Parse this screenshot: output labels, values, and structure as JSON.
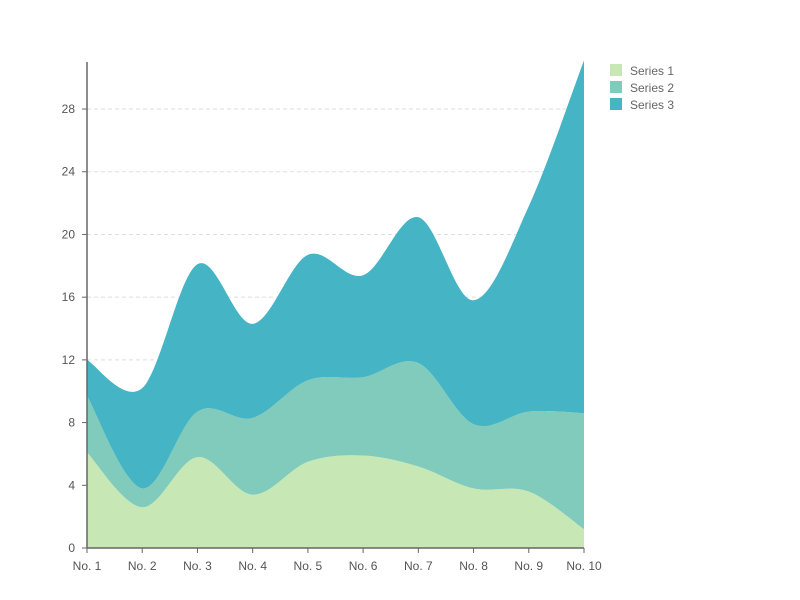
{
  "chart_data": {
    "type": "area",
    "stacked": true,
    "categories": [
      "No. 1",
      "No. 2",
      "No. 3",
      "No. 4",
      "No. 5",
      "No. 6",
      "No. 7",
      "No. 8",
      "No. 9",
      "No. 10"
    ],
    "series": [
      {
        "name": "Series 1",
        "color": "#c7e8b5",
        "values": [
          6.1,
          2.6,
          5.8,
          3.4,
          5.5,
          5.9,
          5.2,
          3.8,
          3.6,
          1.2
        ]
      },
      {
        "name": "Series 2",
        "color": "#80cbbb",
        "values": [
          3.6,
          1.2,
          2.9,
          4.9,
          5.2,
          5.0,
          6.6,
          4.1,
          5.1,
          7.4
        ]
      },
      {
        "name": "Series 3",
        "color": "#45b4c4",
        "values": [
          2.3,
          6.4,
          9.4,
          6.0,
          8.0,
          6.5,
          9.3,
          7.9,
          13.1,
          22.5
        ]
      }
    ],
    "title": "",
    "xlabel": "",
    "ylabel": "",
    "ylim": [
      0,
      31
    ],
    "yticks": [
      0,
      4,
      8,
      12,
      16,
      20,
      24,
      28
    ],
    "grid": true,
    "legend_position": "top-right",
    "colors": {
      "axis": "#666666",
      "grid": "#dddddd",
      "text": "#555555"
    }
  }
}
